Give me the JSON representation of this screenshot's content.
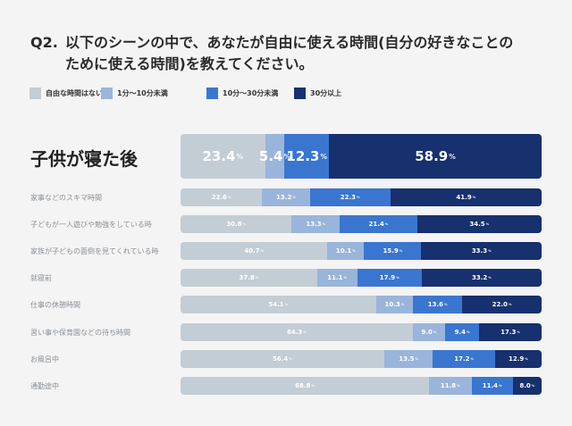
{
  "title": {
    "prefix": "Q2.",
    "line1": "以下のシーンの中で、あなたが自由に使える時間(自分の好きなことの",
    "line2": "ために使える時間)を教えてください。"
  },
  "colors": {
    "none": "#c3cdd5",
    "under10": "#9ab5db",
    "10to30": "#3a76d0",
    "over30": "#17306e"
  },
  "chart_data": {
    "type": "bar",
    "orientation": "horizontal",
    "stacked": true,
    "normalized": true,
    "title": "Q2. 以下のシーンの中で、あなたが自由に使える時間(自分の好きなことのために使える時間)を教えてください。",
    "xlabel": "",
    "ylabel": "",
    "unit": "%",
    "xlim": [
      0,
      100
    ],
    "legend_position": "top-left",
    "categories": [
      "子供が寝た後",
      "家事などのスキマ時間",
      "子どもが一人遊びや勉強をしている時",
      "家族が子どもの面倒を見てくれている時",
      "就寝前",
      "仕事の休憩時間",
      "習い事や保育園などの待ち時間",
      "お風呂中",
      "通勤途中"
    ],
    "series": [
      {
        "name": "自由な時間はない",
        "color": "#c3cdd5",
        "values": [
          23.4,
          22.6,
          30.8,
          40.7,
          37.8,
          54.1,
          64.3,
          56.4,
          68.8
        ]
      },
      {
        "name": "1分～10分未満",
        "color": "#9ab5db",
        "values": [
          5.4,
          13.2,
          13.3,
          10.1,
          11.1,
          10.3,
          9.0,
          13.5,
          11.8
        ]
      },
      {
        "name": "10分～30分未満",
        "color": "#3a76d0",
        "values": [
          12.3,
          22.3,
          21.4,
          15.9,
          17.9,
          13.6,
          9.4,
          17.2,
          11.4
        ]
      },
      {
        "name": "30分以上",
        "color": "#17306e",
        "values": [
          58.9,
          41.9,
          34.5,
          33.3,
          33.2,
          22.0,
          17.3,
          12.9,
          8.0
        ]
      }
    ],
    "highlighted_category": "子供が寝た後",
    "percent_suffix": "%"
  }
}
